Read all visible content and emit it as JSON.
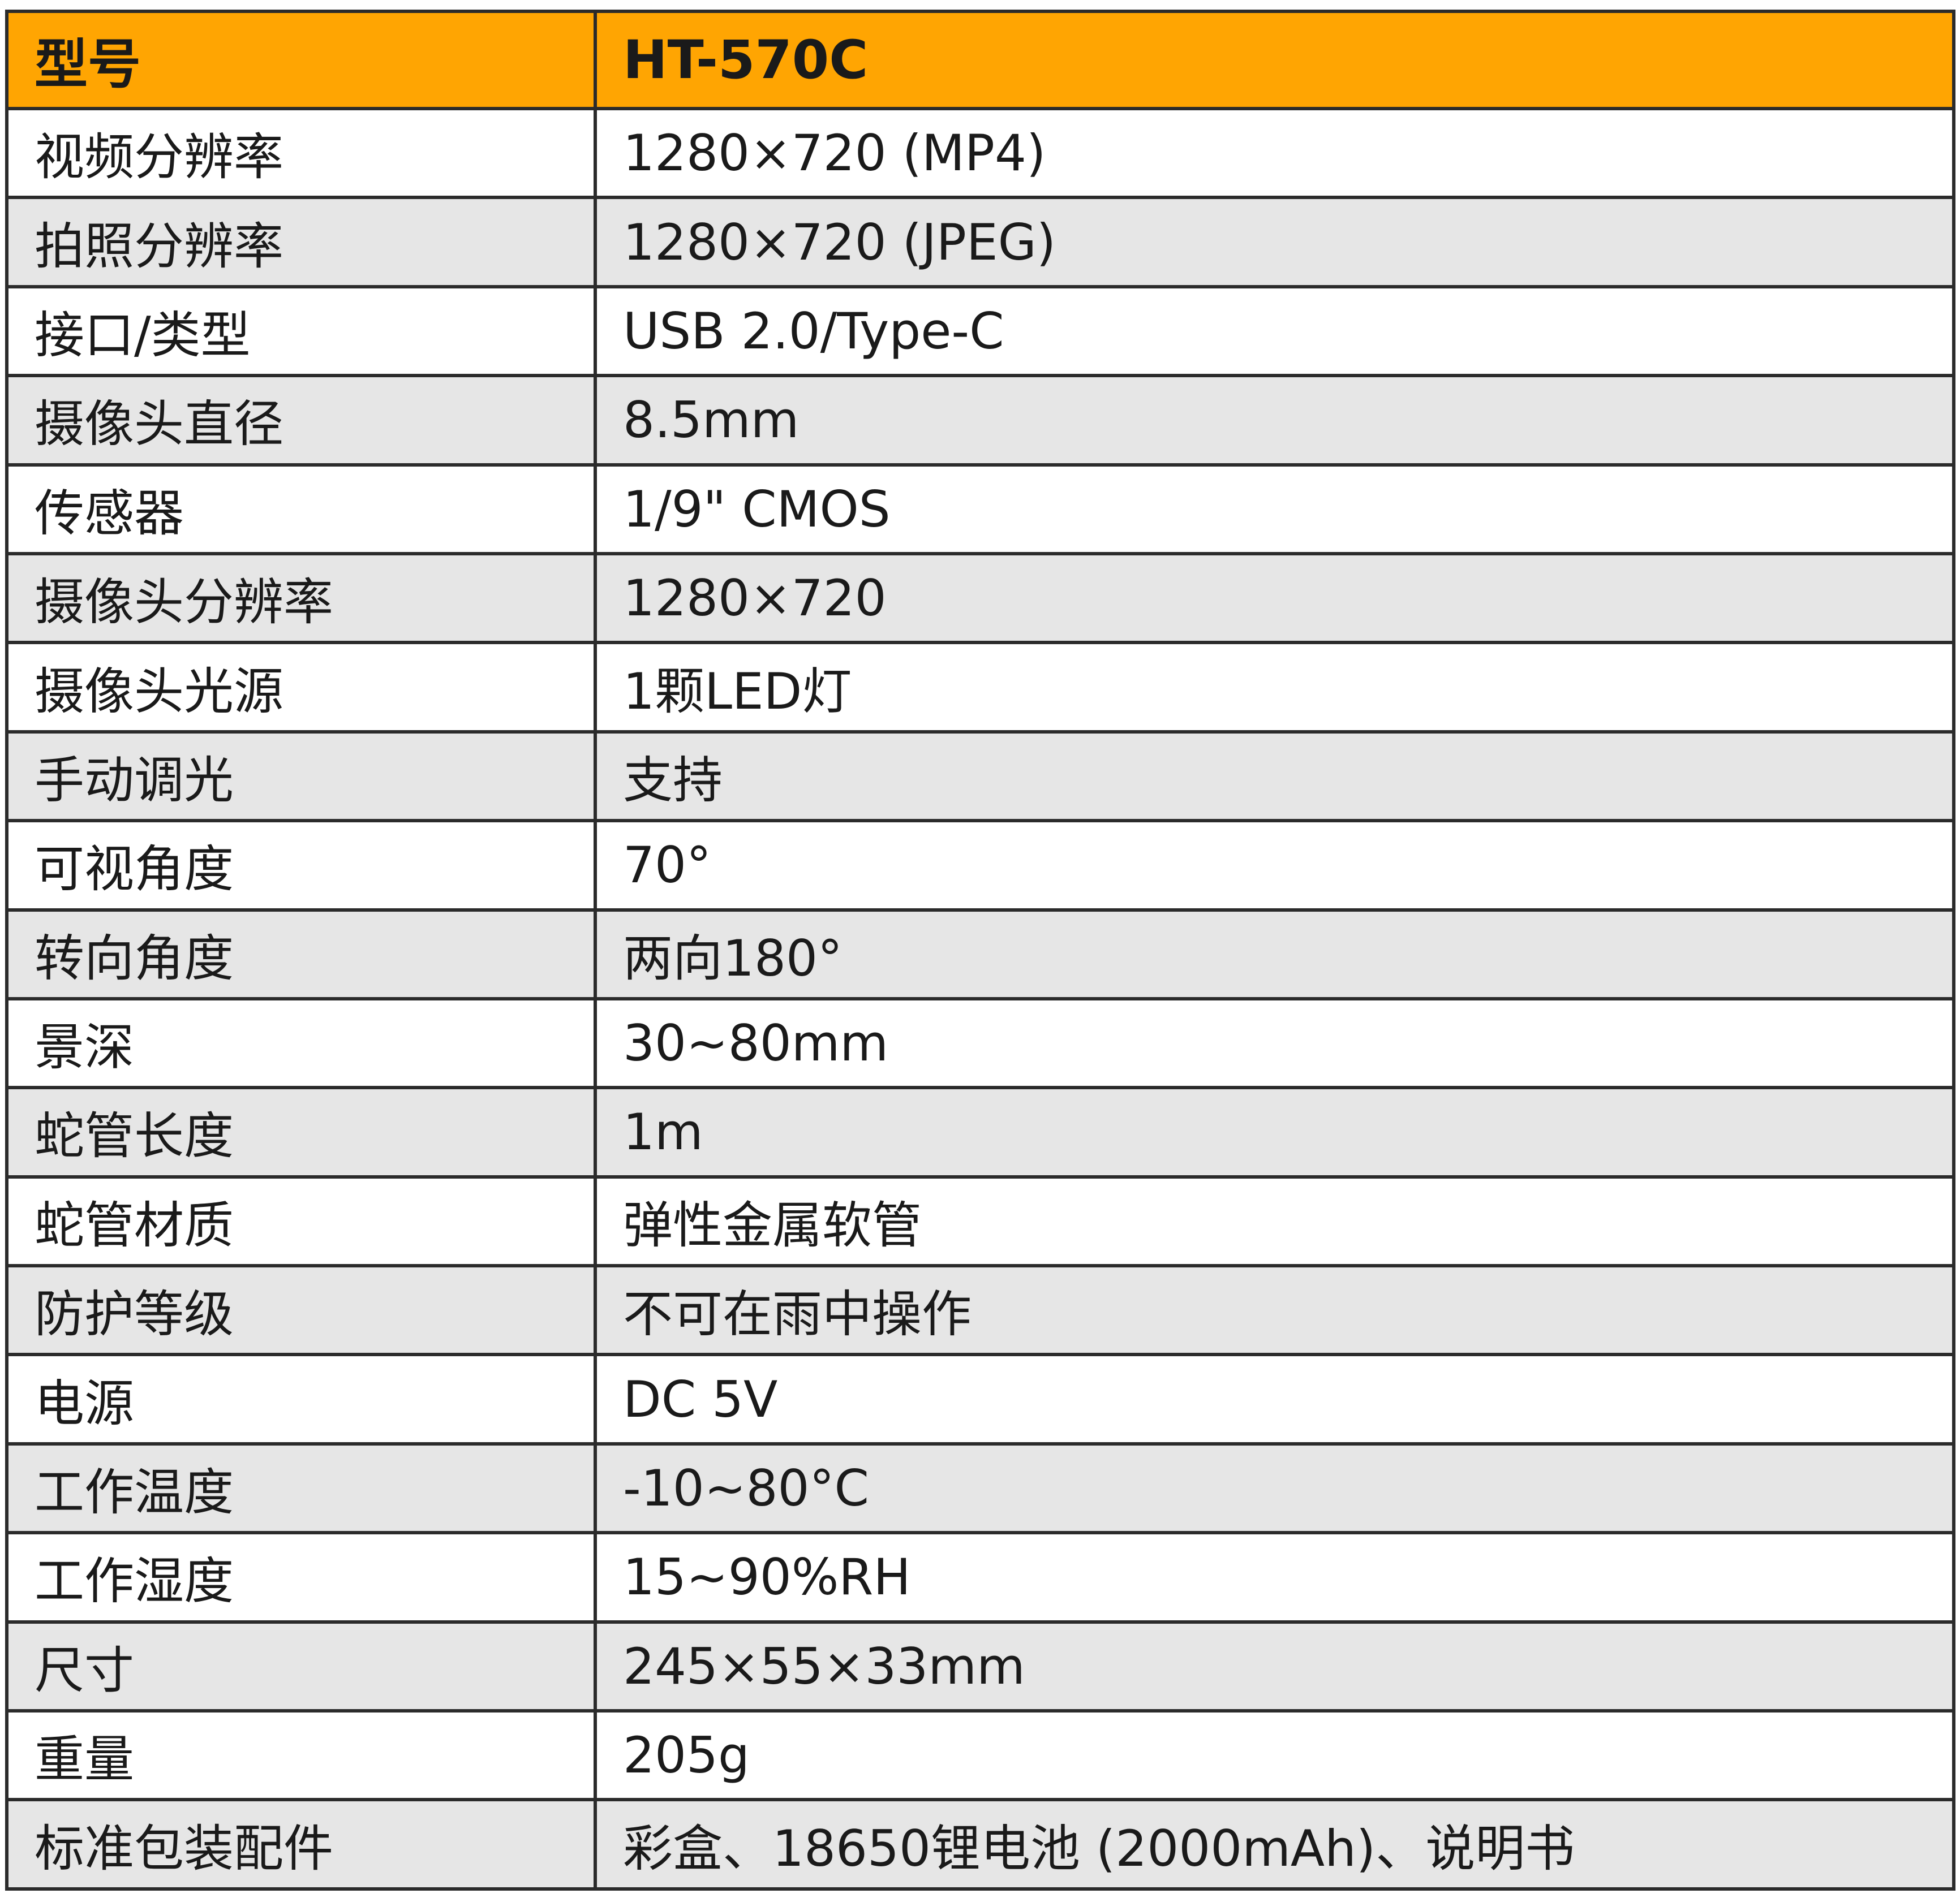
{
  "header": {
    "label": "型号",
    "value": "HT-570C"
  },
  "rows": [
    {
      "label": "视频分辨率",
      "value": "1280×720 (MP4)"
    },
    {
      "label": "拍照分辨率",
      "value": "1280×720 (JPEG)"
    },
    {
      "label": "接口/类型",
      "value": "USB 2.0/Type-C"
    },
    {
      "label": "摄像头直径",
      "value": "8.5mm"
    },
    {
      "label": "传感器",
      "value": "1/9\" CMOS"
    },
    {
      "label": "摄像头分辨率",
      "value": "1280×720"
    },
    {
      "label": "摄像头光源",
      "value": "1颗LED灯"
    },
    {
      "label": "手动调光",
      "value": "支持"
    },
    {
      "label": "可视角度",
      "value": "70°"
    },
    {
      "label": "转向角度",
      "value": "两向180°"
    },
    {
      "label": "景深",
      "value": "30~80mm"
    },
    {
      "label": "蛇管长度",
      "value": "1m"
    },
    {
      "label": "蛇管材质",
      "value": "弹性金属软管"
    },
    {
      "label": "防护等级",
      "value": "不可在雨中操作"
    },
    {
      "label": "电源",
      "value": "DC 5V"
    },
    {
      "label": "工作温度",
      "value": "-10~80°C"
    },
    {
      "label": "工作湿度",
      "value": "15~90%RH"
    },
    {
      "label": "尺寸",
      "value": "245×55×33mm"
    },
    {
      "label": "重量",
      "value": "205g"
    },
    {
      "label": "标准包装配件",
      "value": "彩盒、18650锂电池 (2000mAh)、说明书"
    }
  ],
  "colors": {
    "header_bg": "#FFA502",
    "stripe_bg": "#E6E6E6",
    "border": "#2b2b2b"
  }
}
